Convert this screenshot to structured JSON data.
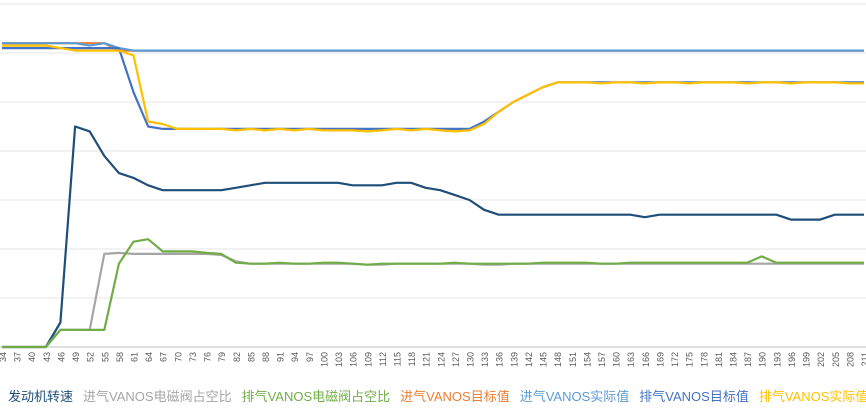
{
  "chart_data": {
    "type": "line",
    "x": [
      34,
      37,
      40,
      43,
      46,
      49,
      52,
      55,
      58,
      61,
      64,
      67,
      70,
      73,
      76,
      79,
      82,
      85,
      88,
      91,
      94,
      97,
      100,
      103,
      106,
      109,
      112,
      115,
      118,
      121,
      124,
      127,
      130,
      133,
      136,
      139,
      142,
      145,
      148,
      151,
      154,
      157,
      160,
      163,
      166,
      169,
      172,
      175,
      178,
      181,
      184,
      187,
      190,
      193,
      196,
      199,
      202,
      205,
      208,
      211
    ],
    "xtick_labels": [
      "34",
      "37",
      "40",
      "43",
      "46",
      "49",
      "52",
      "55",
      "58",
      "61",
      "64",
      "67",
      "70",
      "73",
      "76",
      "79",
      "82",
      "85",
      "88",
      "91",
      "94",
      "97",
      "100",
      "103",
      "106",
      "109",
      "112",
      "115",
      "118",
      "121",
      "124",
      "127",
      "130",
      "133",
      "136",
      "139",
      "142",
      "145",
      "148",
      "151",
      "154",
      "157",
      "160",
      "163",
      "166",
      "169",
      "172",
      "175",
      "178",
      "181",
      "184",
      "187",
      "190",
      "193",
      "196",
      "199",
      "202",
      "205",
      "208",
      "211"
    ],
    "ylim": [
      0,
      7
    ],
    "grid": true,
    "legend_position": "bottom",
    "series": [
      {
        "name": "发动机转速",
        "color": "#1f4e79",
        "values": [
          0,
          0,
          0,
          0,
          0.5,
          4.5,
          4.4,
          3.9,
          3.55,
          3.45,
          3.3,
          3.2,
          3.2,
          3.2,
          3.2,
          3.2,
          3.25,
          3.3,
          3.35,
          3.35,
          3.35,
          3.35,
          3.35,
          3.35,
          3.3,
          3.3,
          3.3,
          3.35,
          3.35,
          3.25,
          3.2,
          3.1,
          3.0,
          2.8,
          2.7,
          2.7,
          2.7,
          2.7,
          2.7,
          2.7,
          2.7,
          2.7,
          2.7,
          2.7,
          2.65,
          2.7,
          2.7,
          2.7,
          2.7,
          2.7,
          2.7,
          2.7,
          2.7,
          2.7,
          2.6,
          2.6,
          2.6,
          2.7,
          2.7,
          2.7
        ]
      },
      {
        "name": "进气VANOS电磁阀占空比",
        "color": "#a5a5a5",
        "values": [
          0,
          0,
          0,
          0,
          0.35,
          0.35,
          0.35,
          1.9,
          1.92,
          1.9,
          1.9,
          1.9,
          1.9,
          1.9,
          1.9,
          1.88,
          1.75,
          1.7,
          1.7,
          1.7,
          1.7,
          1.7,
          1.7,
          1.7,
          1.7,
          1.68,
          1.68,
          1.7,
          1.7,
          1.7,
          1.7,
          1.7,
          1.7,
          1.68,
          1.68,
          1.7,
          1.7,
          1.7,
          1.7,
          1.7,
          1.7,
          1.7,
          1.7,
          1.7,
          1.7,
          1.7,
          1.7,
          1.7,
          1.7,
          1.7,
          1.7,
          1.7,
          1.7,
          1.7,
          1.7,
          1.7,
          1.7,
          1.7,
          1.7,
          1.7
        ]
      },
      {
        "name": "排气VANOS电磁阀占空比",
        "color": "#70ad47",
        "values": [
          0,
          0,
          0,
          0,
          0.35,
          0.35,
          0.35,
          0.35,
          1.7,
          2.15,
          2.2,
          1.95,
          1.95,
          1.95,
          1.92,
          1.9,
          1.72,
          1.7,
          1.7,
          1.72,
          1.7,
          1.7,
          1.72,
          1.72,
          1.7,
          1.68,
          1.7,
          1.7,
          1.7,
          1.7,
          1.7,
          1.72,
          1.7,
          1.7,
          1.7,
          1.7,
          1.7,
          1.72,
          1.72,
          1.72,
          1.72,
          1.7,
          1.7,
          1.72,
          1.72,
          1.72,
          1.72,
          1.72,
          1.72,
          1.72,
          1.72,
          1.72,
          1.85,
          1.72,
          1.72,
          1.72,
          1.72,
          1.72,
          1.72,
          1.72
        ]
      },
      {
        "name": "进气VANOS目标值",
        "color": "#ed7d31",
        "values": [
          6.2,
          6.2,
          6.2,
          6.2,
          6.2,
          6.2,
          6.2,
          6.2,
          6.05,
          6.05,
          6.05,
          6.05,
          6.05,
          6.05,
          6.05,
          6.05,
          6.05,
          6.05,
          6.05,
          6.05,
          6.05,
          6.05,
          6.05,
          6.05,
          6.05,
          6.05,
          6.05,
          6.05,
          6.05,
          6.05,
          6.05,
          6.05,
          6.05,
          6.05,
          6.05,
          6.05,
          6.05,
          6.05,
          6.05,
          6.05,
          6.05,
          6.05,
          6.05,
          6.05,
          6.05,
          6.05,
          6.05,
          6.05,
          6.05,
          6.05,
          6.05,
          6.05,
          6.05,
          6.05,
          6.05,
          6.05,
          6.05,
          6.05,
          6.05,
          6.05
        ]
      },
      {
        "name": "进气VANOS实际值",
        "color": "#5b9bd5",
        "values": [
          6.2,
          6.2,
          6.2,
          6.2,
          6.2,
          6.2,
          6.15,
          6.2,
          6.1,
          6.05,
          6.05,
          6.05,
          6.05,
          6.05,
          6.05,
          6.05,
          6.05,
          6.05,
          6.05,
          6.05,
          6.05,
          6.05,
          6.05,
          6.05,
          6.05,
          6.05,
          6.05,
          6.05,
          6.05,
          6.05,
          6.05,
          6.05,
          6.05,
          6.05,
          6.05,
          6.05,
          6.05,
          6.05,
          6.05,
          6.05,
          6.05,
          6.05,
          6.05,
          6.05,
          6.05,
          6.05,
          6.05,
          6.05,
          6.05,
          6.05,
          6.05,
          6.05,
          6.05,
          6.05,
          6.05,
          6.05,
          6.05,
          6.05,
          6.05,
          6.05
        ]
      },
      {
        "name": "排气VANOS目标值",
        "color": "#4472c4",
        "values": [
          6.1,
          6.1,
          6.1,
          6.1,
          6.1,
          6.1,
          6.1,
          6.1,
          6.1,
          5.2,
          4.5,
          4.45,
          4.45,
          4.45,
          4.45,
          4.45,
          4.45,
          4.45,
          4.45,
          4.45,
          4.45,
          4.45,
          4.45,
          4.45,
          4.45,
          4.45,
          4.45,
          4.45,
          4.45,
          4.45,
          4.45,
          4.45,
          4.45,
          4.6,
          4.8,
          5.0,
          5.15,
          5.3,
          5.4,
          5.4,
          5.4,
          5.4,
          5.4,
          5.4,
          5.4,
          5.4,
          5.4,
          5.4,
          5.4,
          5.4,
          5.4,
          5.4,
          5.4,
          5.4,
          5.4,
          5.4,
          5.4,
          5.4,
          5.4,
          5.4
        ]
      },
      {
        "name": "排气VANOS实际值",
        "color": "#ffc000",
        "values": [
          6.15,
          6.15,
          6.15,
          6.15,
          6.1,
          6.05,
          6.05,
          6.05,
          6.05,
          5.95,
          4.6,
          4.55,
          4.45,
          4.45,
          4.45,
          4.45,
          4.42,
          4.45,
          4.42,
          4.45,
          4.42,
          4.45,
          4.42,
          4.42,
          4.42,
          4.4,
          4.42,
          4.45,
          4.42,
          4.45,
          4.42,
          4.4,
          4.42,
          4.55,
          4.8,
          5.0,
          5.15,
          5.3,
          5.4,
          5.4,
          5.4,
          5.38,
          5.4,
          5.4,
          5.38,
          5.4,
          5.4,
          5.38,
          5.4,
          5.4,
          5.4,
          5.38,
          5.4,
          5.4,
          5.38,
          5.4,
          5.4,
          5.4,
          5.38,
          5.38
        ]
      }
    ]
  }
}
